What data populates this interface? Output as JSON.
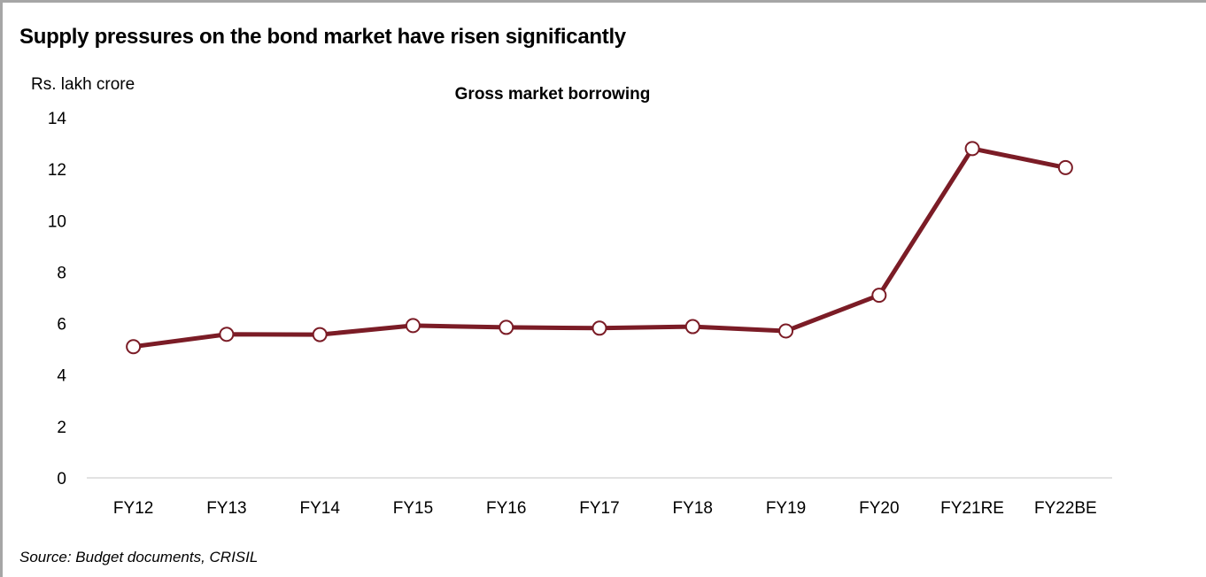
{
  "header": {
    "title": "Supply pressures on the bond market have risen significantly"
  },
  "footer": {
    "source": "Source: Budget documents, CRISIL"
  },
  "chart_data": {
    "type": "line",
    "title": "Gross market borrowing",
    "ylabel": "Rs. lakh crore",
    "xlabel": "",
    "ylim": [
      0,
      14
    ],
    "yticks": [
      0,
      2,
      4,
      6,
      8,
      10,
      12,
      14
    ],
    "grid": false,
    "categories": [
      "FY12",
      "FY13",
      "FY14",
      "FY15",
      "FY16",
      "FY17",
      "FY18",
      "FY19",
      "FY20",
      "FY21RE",
      "FY22BE"
    ],
    "series": [
      {
        "values": [
          5.1,
          5.58,
          5.57,
          5.92,
          5.85,
          5.82,
          5.88,
          5.71,
          7.1,
          12.8,
          12.06
        ],
        "color": "#7b1c26",
        "marker_fill": "#ffffff"
      }
    ]
  }
}
